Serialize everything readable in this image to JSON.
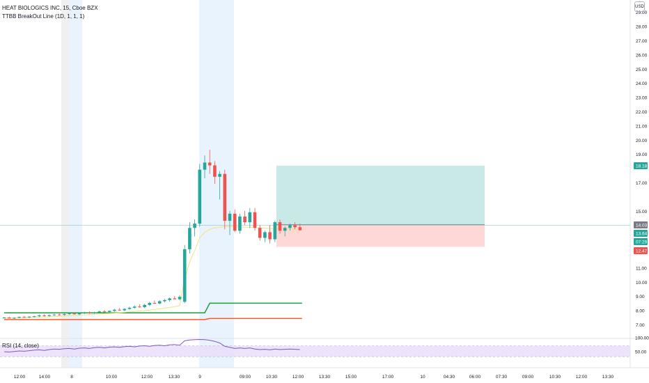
{
  "header": {
    "symbol_line": "HEAT BIOLOGICS INC, 15, Cboe BZX",
    "indicator_line": "TTBB BreakOut Line (1D, 1, 1, 1)",
    "currency": "USD"
  },
  "rsi": {
    "label": "RSI (14, close)",
    "scale_labels": [
      "100.00",
      "50.00"
    ]
  },
  "price_axis": {
    "ticks": [
      "29.00",
      "28.00",
      "27.00",
      "26.00",
      "25.00",
      "24.00",
      "23.00",
      "22.00",
      "21.00",
      "20.00",
      "19.00",
      "17.00",
      "15.00",
      "11.00",
      "10.00",
      "9.00",
      "8.00",
      "7.00"
    ],
    "badges": [
      {
        "label": "18.18",
        "color": "#26a69a"
      },
      {
        "label": "14.03",
        "color": "#787b86"
      },
      {
        "label": "13.64",
        "color": "#26a69a"
      },
      {
        "label": "07:29",
        "color": "#26a69a"
      },
      {
        "label": "12.47",
        "color": "#ef5350"
      }
    ]
  },
  "time_axis": {
    "labels": [
      "12:00",
      "14:00",
      "8",
      "10:00",
      "12:00",
      "13:30",
      "9",
      "09:00",
      "10:30",
      "12:00",
      "13:30",
      "15:00",
      "17:00",
      "10",
      "04:30",
      "06:00",
      "07:30",
      "09:00",
      "10:30",
      "12:00",
      "13:30"
    ]
  },
  "chart_data": {
    "type": "candlestick",
    "title": "HEAT BIOLOGICS INC, 15, Cboe BZX",
    "ylim": [
      6.5,
      29.5
    ],
    "candles": [
      {
        "o": 7.46,
        "h": 7.52,
        "l": 7.41,
        "c": 7.49
      },
      {
        "o": 7.49,
        "h": 7.55,
        "l": 7.43,
        "c": 7.44
      },
      {
        "o": 7.44,
        "h": 7.5,
        "l": 7.4,
        "c": 7.47
      },
      {
        "o": 7.47,
        "h": 7.56,
        "l": 7.44,
        "c": 7.53
      },
      {
        "o": 7.53,
        "h": 7.6,
        "l": 7.48,
        "c": 7.5
      },
      {
        "o": 7.5,
        "h": 7.58,
        "l": 7.45,
        "c": 7.55
      },
      {
        "o": 7.55,
        "h": 7.62,
        "l": 7.5,
        "c": 7.58
      },
      {
        "o": 7.58,
        "h": 7.7,
        "l": 7.52,
        "c": 7.64
      },
      {
        "o": 7.64,
        "h": 7.72,
        "l": 7.56,
        "c": 7.6
      },
      {
        "o": 7.6,
        "h": 7.7,
        "l": 7.55,
        "c": 7.66
      },
      {
        "o": 7.66,
        "h": 7.76,
        "l": 7.6,
        "c": 7.7
      },
      {
        "o": 7.7,
        "h": 7.8,
        "l": 7.63,
        "c": 7.68
      },
      {
        "o": 7.68,
        "h": 7.78,
        "l": 7.62,
        "c": 7.74
      },
      {
        "o": 7.74,
        "h": 7.84,
        "l": 7.68,
        "c": 7.78
      },
      {
        "o": 7.78,
        "h": 7.86,
        "l": 7.7,
        "c": 7.72
      },
      {
        "o": 7.72,
        "h": 7.82,
        "l": 7.66,
        "c": 7.79
      },
      {
        "o": 7.79,
        "h": 7.9,
        "l": 7.73,
        "c": 7.83
      },
      {
        "o": 7.83,
        "h": 7.92,
        "l": 7.75,
        "c": 7.8
      },
      {
        "o": 7.8,
        "h": 7.9,
        "l": 7.74,
        "c": 7.86
      },
      {
        "o": 7.86,
        "h": 7.98,
        "l": 7.8,
        "c": 7.92
      },
      {
        "o": 7.92,
        "h": 8.02,
        "l": 7.85,
        "c": 7.88
      },
      {
        "o": 7.88,
        "h": 8.0,
        "l": 7.82,
        "c": 7.96
      },
      {
        "o": 7.96,
        "h": 8.1,
        "l": 7.9,
        "c": 8.04
      },
      {
        "o": 8.04,
        "h": 8.16,
        "l": 7.96,
        "c": 8.0
      },
      {
        "o": 8.0,
        "h": 8.14,
        "l": 7.94,
        "c": 8.1
      },
      {
        "o": 8.1,
        "h": 8.25,
        "l": 8.02,
        "c": 8.18
      },
      {
        "o": 8.18,
        "h": 8.34,
        "l": 8.1,
        "c": 8.26
      },
      {
        "o": 8.26,
        "h": 8.42,
        "l": 8.18,
        "c": 8.22
      },
      {
        "o": 8.22,
        "h": 8.45,
        "l": 8.16,
        "c": 8.38
      },
      {
        "o": 8.38,
        "h": 8.6,
        "l": 8.3,
        "c": 8.52
      },
      {
        "o": 8.52,
        "h": 8.7,
        "l": 8.44,
        "c": 8.48
      },
      {
        "o": 8.48,
        "h": 8.72,
        "l": 8.42,
        "c": 8.64
      },
      {
        "o": 8.64,
        "h": 8.8,
        "l": 8.55,
        "c": 8.72
      },
      {
        "o": 8.72,
        "h": 8.9,
        "l": 8.62,
        "c": 8.84
      },
      {
        "o": 8.84,
        "h": 9.0,
        "l": 8.75,
        "c": 8.78
      },
      {
        "o": 8.78,
        "h": 9.05,
        "l": 8.7,
        "c": 8.95
      },
      {
        "o": 8.6,
        "h": 12.6,
        "l": 8.5,
        "c": 12.3
      },
      {
        "o": 12.3,
        "h": 14.2,
        "l": 12.0,
        "c": 13.8
      },
      {
        "o": 13.8,
        "h": 14.4,
        "l": 13.2,
        "c": 14.1
      },
      {
        "o": 14.1,
        "h": 18.3,
        "l": 13.9,
        "c": 17.9
      },
      {
        "o": 17.9,
        "h": 18.9,
        "l": 17.3,
        "c": 18.4
      },
      {
        "o": 18.4,
        "h": 19.3,
        "l": 17.6,
        "c": 18.2
      },
      {
        "o": 18.2,
        "h": 18.5,
        "l": 16.9,
        "c": 17.4
      },
      {
        "o": 17.4,
        "h": 17.8,
        "l": 15.8,
        "c": 17.6
      },
      {
        "o": 17.6,
        "h": 17.9,
        "l": 13.7,
        "c": 14.3
      },
      {
        "o": 14.3,
        "h": 15.0,
        "l": 13.3,
        "c": 14.8
      },
      {
        "o": 14.8,
        "h": 15.1,
        "l": 13.5,
        "c": 13.6
      },
      {
        "o": 13.6,
        "h": 14.8,
        "l": 13.4,
        "c": 14.6
      },
      {
        "o": 14.6,
        "h": 15.0,
        "l": 14.0,
        "c": 14.2
      },
      {
        "o": 14.2,
        "h": 15.2,
        "l": 13.8,
        "c": 14.9
      },
      {
        "o": 14.9,
        "h": 15.2,
        "l": 13.6,
        "c": 13.8
      },
      {
        "o": 13.8,
        "h": 14.0,
        "l": 12.9,
        "c": 13.1
      },
      {
        "o": 13.1,
        "h": 13.6,
        "l": 12.8,
        "c": 13.5
      },
      {
        "o": 13.5,
        "h": 14.0,
        "l": 12.7,
        "c": 13.0
      },
      {
        "o": 13.0,
        "h": 14.3,
        "l": 12.8,
        "c": 14.2
      },
      {
        "o": 14.2,
        "h": 14.4,
        "l": 13.4,
        "c": 13.6
      },
      {
        "o": 13.6,
        "h": 13.9,
        "l": 13.2,
        "c": 13.8
      },
      {
        "o": 13.8,
        "h": 14.1,
        "l": 13.6,
        "c": 14.0
      },
      {
        "o": 14.0,
        "h": 14.2,
        "l": 13.7,
        "c": 13.85
      },
      {
        "o": 13.85,
        "h": 14.1,
        "l": 13.6,
        "c": 13.64
      }
    ],
    "breakout_line_upper": [
      7.82,
      7.82,
      7.82,
      7.82,
      7.82,
      7.82,
      7.82,
      7.82,
      7.82,
      7.82,
      7.82,
      7.82,
      7.82,
      7.82,
      7.82,
      7.82,
      7.82,
      7.82,
      7.82,
      7.82,
      7.82,
      7.82,
      7.82,
      7.82,
      7.82,
      7.82,
      7.82,
      7.82,
      7.82,
      7.82,
      7.82,
      7.82,
      7.82,
      7.82,
      7.82,
      7.82,
      7.82,
      7.82,
      7.82,
      7.82,
      7.82,
      8.5,
      8.5,
      8.5,
      8.5,
      8.5,
      8.5,
      8.5,
      8.5,
      8.5,
      8.5,
      8.5,
      8.5,
      8.5,
      8.5,
      8.5,
      8.5,
      8.5,
      8.5,
      8.5
    ],
    "breakout_line_lower": [
      7.35,
      7.35,
      7.35,
      7.35,
      7.35,
      7.35,
      7.35,
      7.35,
      7.35,
      7.35,
      7.35,
      7.35,
      7.35,
      7.35,
      7.35,
      7.35,
      7.35,
      7.35,
      7.35,
      7.35,
      7.35,
      7.35,
      7.35,
      7.35,
      7.35,
      7.35,
      7.35,
      7.35,
      7.35,
      7.35,
      7.35,
      7.35,
      7.35,
      7.35,
      7.35,
      7.35,
      7.35,
      7.35,
      7.35,
      7.35,
      7.35,
      7.42,
      7.42,
      7.42,
      7.42,
      7.42,
      7.42,
      7.42,
      7.42,
      7.42,
      7.42,
      7.42,
      7.42,
      7.42,
      7.42,
      7.42,
      7.42,
      7.42,
      7.42,
      7.42
    ],
    "moving_average": [
      7.45,
      7.46,
      7.47,
      7.48,
      7.49,
      7.5,
      7.51,
      7.52,
      7.53,
      7.54,
      7.56,
      7.58,
      7.6,
      7.62,
      7.64,
      7.66,
      7.68,
      7.7,
      7.72,
      7.74,
      7.76,
      7.78,
      7.8,
      7.83,
      7.86,
      7.89,
      7.92,
      7.95,
      7.98,
      8.02,
      8.06,
      8.1,
      8.15,
      8.2,
      8.26,
      8.32,
      10.2,
      11.4,
      12.2,
      13.1,
      13.5,
      13.7,
      13.8,
      13.85,
      13.9,
      13.9,
      13.88,
      13.86,
      13.85,
      13.84,
      13.82,
      13.8,
      13.78,
      13.76,
      13.75,
      13.74,
      13.73,
      13.72,
      13.72,
      13.72
    ],
    "position": {
      "entry": 14.03,
      "target": 18.18,
      "stop": 12.47
    },
    "rsi_values": [
      48,
      47,
      49,
      51,
      50,
      52,
      54,
      55,
      53,
      56,
      58,
      57,
      59,
      60,
      58,
      61,
      62,
      60,
      63,
      64,
      62,
      65,
      66,
      64,
      67,
      68,
      66,
      69,
      70,
      68,
      71,
      72,
      70,
      73,
      74,
      72,
      88,
      91,
      92,
      93,
      92,
      90,
      86,
      80,
      68,
      64,
      60,
      62,
      60,
      62,
      58,
      56,
      57,
      55,
      58,
      56,
      57,
      58,
      57,
      56
    ],
    "current_price": 13.64,
    "countdown": "07:29"
  }
}
